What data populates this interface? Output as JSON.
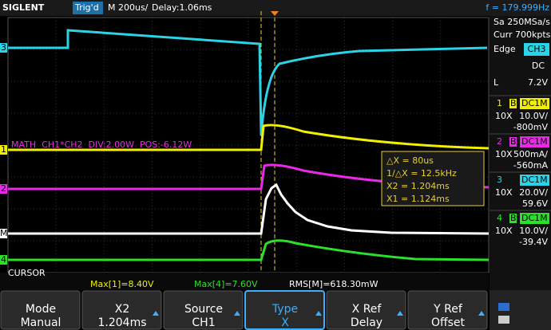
{
  "top_bar": {
    "brand": "SIGLENT",
    "trigger_status": "Trig'd",
    "timebase": "M 200us/",
    "delay": "Delay:1.06ms",
    "frequency": "f = 179.999Hz"
  },
  "acquisition": {
    "sample_rate": "Sa 250MSa/s",
    "memory_depth": "Curr 700kpts"
  },
  "trigger": {
    "type": "Edge",
    "source": "CH3",
    "coupling": "DC",
    "level_label": "L",
    "level": "7.2V"
  },
  "channels": [
    {
      "number": "1",
      "bw": "B",
      "coupling": "DC1M",
      "probe": "10X",
      "scale": "10.0V/",
      "offset": "-800mV"
    },
    {
      "number": "2",
      "bw": "B",
      "coupling": "DC1M",
      "probe": "10X",
      "scale": "500mA/",
      "offset": "-560mA"
    },
    {
      "number": "3",
      "coupling": "DC1M",
      "probe": "10X",
      "scale": "20.0V/",
      "offset": "59.6V"
    },
    {
      "number": "4",
      "bw": "B",
      "coupling": "DC1M",
      "probe": "10X",
      "scale": "10.0V/",
      "offset": "-39.4V"
    }
  ],
  "markers": [
    "3",
    "1",
    "2",
    "M",
    "4"
  ],
  "math_label": "MATH  CH1*CH2  DIV:2.00W  POS:-6.12W",
  "cursor_readout": [
    "△X = 80us",
    "1/△X = 12.5kHz",
    "X2 = 1.204ms",
    "X1 = 1.124ms"
  ],
  "status_bar": {
    "mode": "CURSOR",
    "max1": "Max[1]=8.40V",
    "max4": "Max[4]=7.60V",
    "rms": "RMS[M]=618.30mW"
  },
  "softkeys": [
    {
      "label": "Mode",
      "value": "Manual"
    },
    {
      "label": "X2",
      "value": "1.204ms"
    },
    {
      "label": "Source",
      "value": "CH1"
    },
    {
      "label": "Type",
      "value": "X"
    },
    {
      "label": "X Ref",
      "value": "Delay"
    },
    {
      "label": "Y Ref",
      "value": "Offset"
    }
  ]
}
